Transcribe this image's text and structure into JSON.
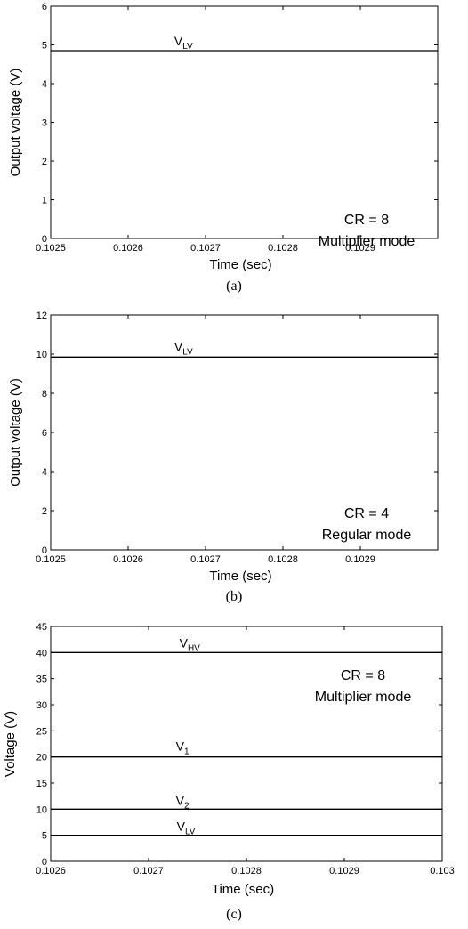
{
  "chart_data": [
    {
      "type": "line",
      "panel": "a",
      "caption": "(a)",
      "xlabel": "Time (sec)",
      "ylabel": "Output voltage (V)",
      "xlim": [
        0.1025,
        0.103
      ],
      "ylim": [
        0,
        6
      ],
      "x_ticks": [
        "0.1025",
        "0.1026",
        "0.1027",
        "0.1028",
        "0.1029"
      ],
      "y_ticks": [
        "0",
        "1",
        "2",
        "3",
        "4",
        "5",
        "6"
      ],
      "annotation": [
        "CR = 8",
        "Multiplier mode"
      ],
      "series": [
        {
          "label_main": "V",
          "label_sub": "LV",
          "x": [
            0.1025,
            0.103
          ],
          "y": [
            4.85,
            4.85
          ]
        }
      ]
    },
    {
      "type": "line",
      "panel": "b",
      "caption": "(b)",
      "xlabel": "Time (sec)",
      "ylabel": "Output voltage (V)",
      "xlim": [
        0.1025,
        0.103
      ],
      "ylim": [
        0,
        12
      ],
      "x_ticks": [
        "0.1025",
        "0.1026",
        "0.1027",
        "0.1028",
        "0.1029"
      ],
      "y_ticks": [
        "0",
        "2",
        "4",
        "6",
        "8",
        "10",
        "12"
      ],
      "annotation": [
        "CR = 4",
        "Regular mode"
      ],
      "series": [
        {
          "label_main": "V",
          "label_sub": "LV",
          "x": [
            0.1025,
            0.103
          ],
          "y": [
            9.85,
            9.85
          ]
        }
      ]
    },
    {
      "type": "line",
      "panel": "c",
      "caption": "(c)",
      "xlabel": "Time (sec)",
      "ylabel": "Voltage (V)",
      "xlim": [
        0.1026,
        0.103
      ],
      "ylim": [
        0,
        45
      ],
      "x_ticks": [
        "0.1026",
        "0.1027",
        "0.1028",
        "0.1029",
        "0.103"
      ],
      "y_ticks": [
        "0",
        "5",
        "10",
        "15",
        "20",
        "25",
        "30",
        "35",
        "40",
        "45"
      ],
      "annotation": [
        "CR = 8",
        "Multiplier mode"
      ],
      "series": [
        {
          "label_main": "V",
          "label_sub": "HV",
          "x": [
            0.1026,
            0.103
          ],
          "y": [
            40,
            40
          ]
        },
        {
          "label_main": "V",
          "label_sub": "1",
          "x": [
            0.1026,
            0.103
          ],
          "y": [
            20,
            20
          ]
        },
        {
          "label_main": "V",
          "label_sub": "2",
          "x": [
            0.1026,
            0.103
          ],
          "y": [
            10,
            10
          ]
        },
        {
          "label_main": "V",
          "label_sub": "LV",
          "x": [
            0.1026,
            0.103
          ],
          "y": [
            5,
            5
          ]
        }
      ]
    }
  ]
}
